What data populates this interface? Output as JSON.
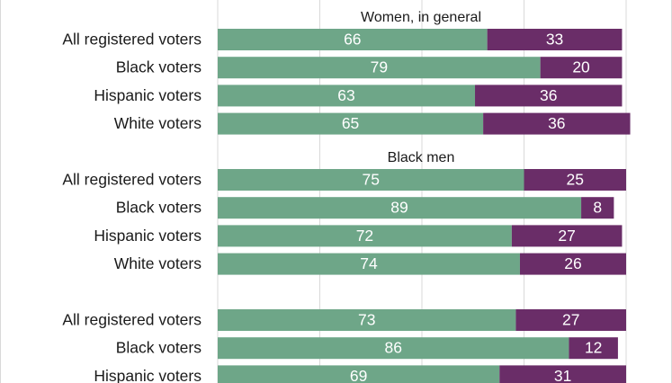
{
  "chart_data": {
    "type": "bar",
    "stacked": true,
    "orientation": "horizontal",
    "xlim": [
      0,
      100
    ],
    "grid": true,
    "colors": {
      "first": "#6ea688",
      "second": "#6a2d68",
      "label": "#ffffff",
      "text": "#1a1a1a",
      "grid": "#d9d9d9"
    },
    "groups": [
      {
        "title": "Women, in general",
        "rows": [
          {
            "label": "All registered voters",
            "values": [
              66,
              33
            ]
          },
          {
            "label": "Black voters",
            "values": [
              79,
              20
            ]
          },
          {
            "label": "Hispanic voters",
            "values": [
              63,
              36
            ]
          },
          {
            "label": "White voters",
            "values": [
              65,
              36
            ]
          }
        ]
      },
      {
        "title": "Black men",
        "rows": [
          {
            "label": "All registered voters",
            "values": [
              75,
              25
            ]
          },
          {
            "label": "Black voters",
            "values": [
              89,
              8
            ]
          },
          {
            "label": "Hispanic voters",
            "values": [
              72,
              27
            ]
          },
          {
            "label": "White voters",
            "values": [
              74,
              26
            ]
          }
        ]
      },
      {
        "title": "",
        "rows": [
          {
            "label": "All registered voters",
            "values": [
              73,
              27
            ]
          },
          {
            "label": "Black voters",
            "values": [
              86,
              12
            ]
          },
          {
            "label": "Hispanic voters",
            "values": [
              69,
              31
            ]
          }
        ]
      }
    ]
  }
}
